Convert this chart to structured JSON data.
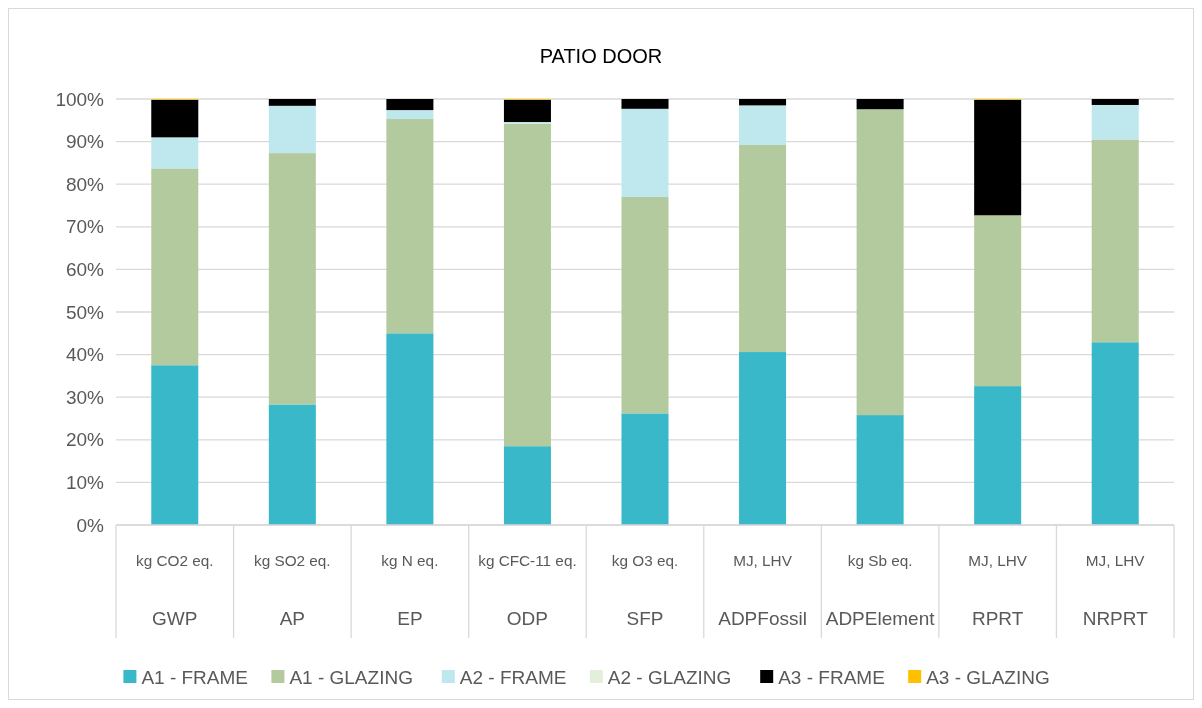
{
  "chart_data": {
    "type": "bar",
    "title": "PATIO DOOR",
    "stacked": true,
    "categories": [
      "kg CO2 eq.\nGWP",
      "kg SO2 eq.\nAP",
      "kg N eq.\nEP",
      "kg CFC-11 eq.\nODP",
      "kg O3 eq.\nSFP",
      "MJ, LHV\nADPFossil",
      "kg Sb eq.\nADPElement",
      "MJ, LHV\nRPRT",
      "MJ, LHV\nNRPRT"
    ],
    "series": [
      {
        "name": "A1 - FRAME",
        "color": "#38b8c8",
        "values": [
          37.5,
          28.3,
          45,
          18.5,
          26.2,
          40.6,
          25.8,
          32.6,
          42.9
        ]
      },
      {
        "name": "A1 - GLAZING",
        "color": "#b3ca9e",
        "values": [
          46.2,
          59,
          50.3,
          75.7,
          50.8,
          48.6,
          71.8,
          40.1,
          47.6
        ]
      },
      {
        "name": "A2 - FRAME",
        "color": "#bee7ee",
        "values": [
          7.3,
          11.1,
          2.1,
          0.4,
          20.7,
          9.3,
          0,
          0,
          8.1
        ]
      },
      {
        "name": "A2 - GLAZING",
        "color": "#e2efda",
        "values": [
          0,
          0,
          0,
          0,
          0,
          0,
          0,
          0,
          0
        ]
      },
      {
        "name": "A3 - FRAME",
        "color": "#000000",
        "values": [
          8.8,
          1.6,
          2.6,
          5.2,
          2.3,
          1.5,
          2.4,
          27.1,
          1.4
        ]
      },
      {
        "name": "A3 - GLAZING",
        "color": "#ffc000",
        "values": [
          0.2,
          0,
          0,
          0.2,
          0,
          0,
          0,
          0.2,
          0
        ]
      }
    ],
    "ylim": [
      0,
      100
    ],
    "yticks": [
      {
        "value": 0,
        "label": "0%"
      },
      {
        "value": 10,
        "label": "10%"
      },
      {
        "value": 20,
        "label": "20%"
      },
      {
        "value": 30,
        "label": "30%"
      },
      {
        "value": 40,
        "label": "40%"
      },
      {
        "value": 50,
        "label": "50%"
      },
      {
        "value": 60,
        "label": "60%"
      },
      {
        "value": 70,
        "label": "70%"
      },
      {
        "value": 80,
        "label": "80%"
      },
      {
        "value": 90,
        "label": "90%"
      },
      {
        "value": 100,
        "label": "100%"
      }
    ],
    "grid": "y",
    "legend": "bottom"
  }
}
